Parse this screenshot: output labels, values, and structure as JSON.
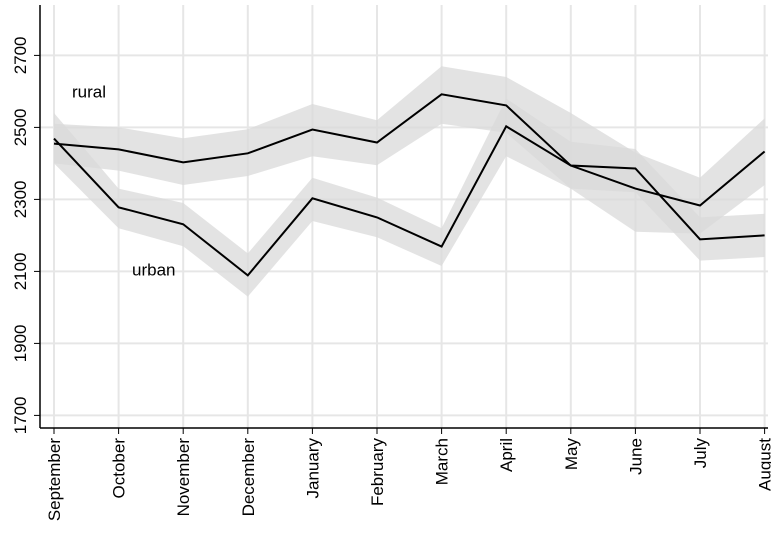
{
  "chart_data": {
    "type": "line",
    "categories": [
      "September",
      "October",
      "November",
      "December",
      "January",
      "February",
      "March",
      "April",
      "May",
      "June",
      "July",
      "August"
    ],
    "series": [
      {
        "name": "rural",
        "color": "#000000",
        "values": [
          2455,
          2439,
          2403,
          2428,
          2494,
          2458,
          2592,
          2561,
          2394,
          2330,
          2283,
          2433
        ],
        "ci_high": [
          2510,
          2500,
          2470,
          2495,
          2565,
          2520,
          2670,
          2640,
          2540,
          2430,
          2360,
          2525
        ],
        "ci_low": [
          2400,
          2380,
          2340,
          2365,
          2420,
          2395,
          2510,
          2485,
          2330,
          2210,
          2205,
          2340
        ]
      },
      {
        "name": "urban",
        "color": "#000000",
        "values": [
          2469,
          2278,
          2231,
          2089,
          2303,
          2250,
          2169,
          2503,
          2394,
          2386,
          2189,
          2200
        ],
        "ci_high": [
          2540,
          2330,
          2290,
          2150,
          2360,
          2305,
          2220,
          2580,
          2460,
          2440,
          2250,
          2260
        ],
        "ci_low": [
          2400,
          2220,
          2170,
          2030,
          2240,
          2195,
          2115,
          2420,
          2330,
          2320,
          2130,
          2140
        ]
      }
    ],
    "band_color": "#d9d9d9",
    "ylim": [
      1665,
      2840
    ],
    "yticks": [
      1700,
      1900,
      2100,
      2300,
      2500,
      2700
    ],
    "grid": true
  }
}
